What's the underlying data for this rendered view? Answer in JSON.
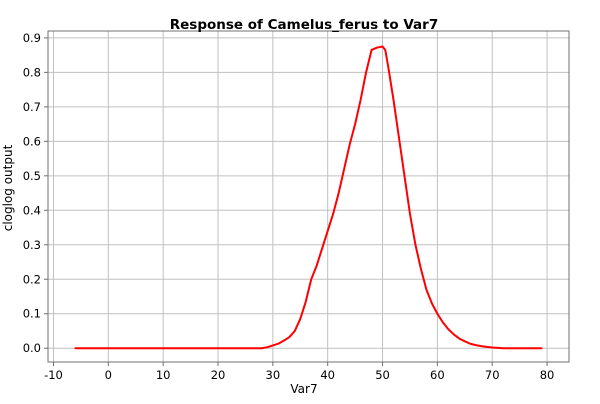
{
  "chart_data": {
    "type": "line",
    "title": "Response of Camelus_ferus to Var7",
    "xlabel": "Var7",
    "ylabel": "cloglog output",
    "xlim": [
      -11,
      84
    ],
    "ylim": [
      -0.04,
      0.92
    ],
    "xticks": [
      -10,
      0,
      10,
      20,
      30,
      40,
      50,
      60,
      70,
      80
    ],
    "yticks": [
      0.0,
      0.1,
      0.2,
      0.3,
      0.4,
      0.5,
      0.6,
      0.7,
      0.8,
      0.9
    ],
    "ytick_labels": [
      "0.0",
      "0.1",
      "0.2",
      "0.3",
      "0.4",
      "0.5",
      "0.6",
      "0.7",
      "0.8",
      "0.9"
    ],
    "grid": true,
    "series": [
      {
        "color": "#ff0000",
        "x": [
          -6,
          0,
          10,
          20,
          28,
          29,
          30,
          31,
          32,
          33,
          34,
          35,
          36,
          37,
          38,
          39,
          40,
          41,
          42,
          43,
          44,
          45,
          46,
          47,
          48,
          49,
          50,
          50.5,
          51,
          52,
          53,
          54,
          55,
          56,
          57,
          58,
          59,
          60,
          61,
          62,
          63,
          64,
          65,
          66,
          67,
          68,
          69,
          70,
          71,
          72,
          75,
          79
        ],
        "y": [
          0.0,
          0.0,
          0.0,
          0.0,
          0.0,
          0.003,
          0.008,
          0.013,
          0.022,
          0.032,
          0.05,
          0.085,
          0.135,
          0.2,
          0.24,
          0.29,
          0.34,
          0.39,
          0.45,
          0.52,
          0.59,
          0.65,
          0.72,
          0.8,
          0.865,
          0.872,
          0.875,
          0.865,
          0.82,
          0.72,
          0.61,
          0.5,
          0.39,
          0.3,
          0.23,
          0.17,
          0.13,
          0.1,
          0.075,
          0.055,
          0.04,
          0.028,
          0.02,
          0.013,
          0.009,
          0.006,
          0.004,
          0.002,
          0.001,
          0.0,
          0.0,
          0.0
        ]
      }
    ]
  }
}
